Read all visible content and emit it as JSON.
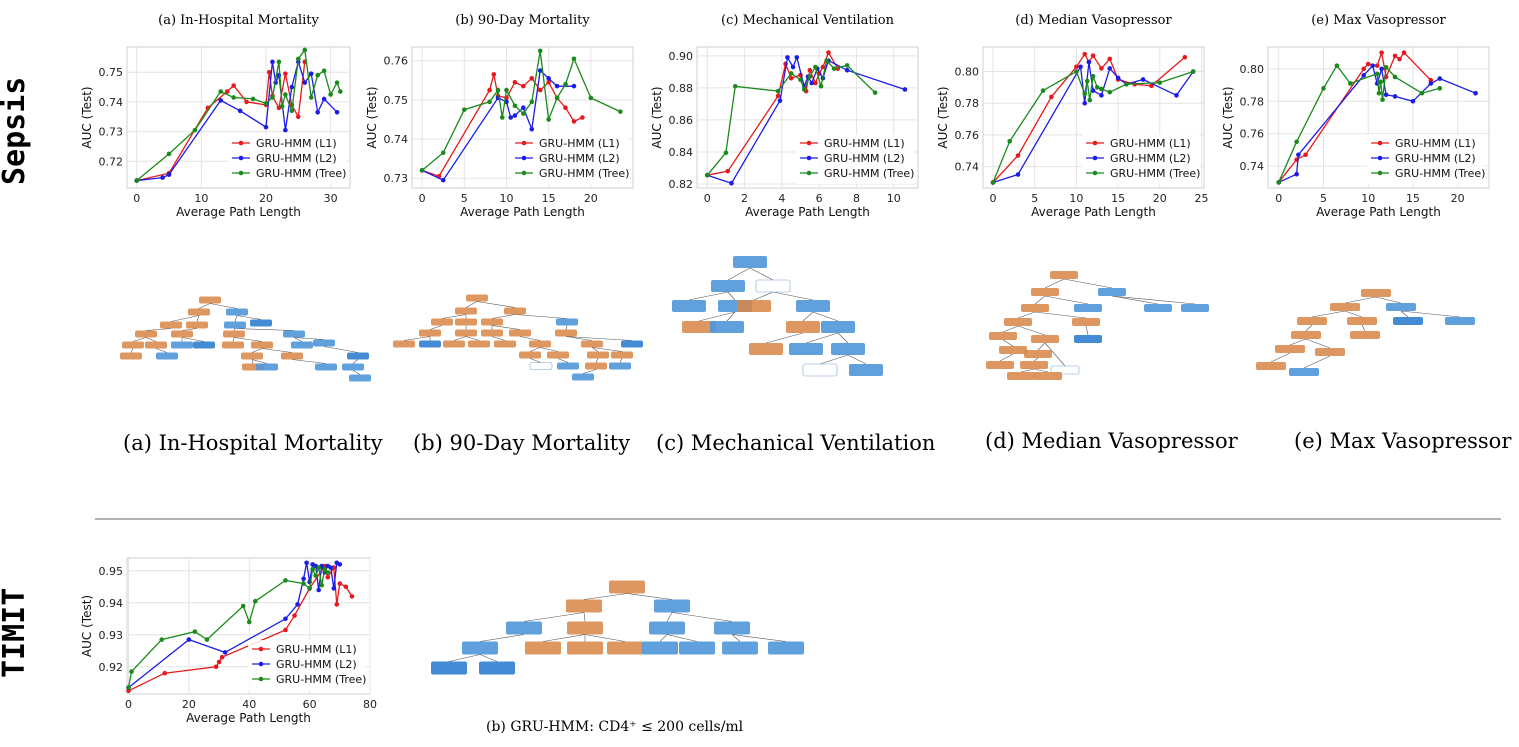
{
  "sections": {
    "sepsis_label": "Sepsis",
    "timit_label": "TIMIT",
    "tree_captions": [
      "(a) In-Hospital Mortality",
      "(b) 90-Day Mortality",
      "(c) Mechanical Ventilation",
      "(d) Median Vasopressor",
      "(e) Max Vasopressor"
    ],
    "timit_tree_caption": "(b) GRU-HMM: CD4⁺ ≤ 200 cells/ml"
  },
  "colors": {
    "L1": "#e8191c",
    "L2": "#1c1ce8",
    "Tree": "#1a8a1a",
    "tree_orange": "#d98545",
    "tree_blue": "#4f97d9"
  },
  "chart_data": [
    {
      "type": "line",
      "title": "(a) In-Hospital Mortality",
      "xlabel": "Average Path Length",
      "ylabel": "AUC (Test)",
      "xlim": [
        -1.5,
        33
      ],
      "ylim": [
        0.711,
        0.7585
      ],
      "xticks": [
        0,
        10,
        20,
        30
      ],
      "yticks": [
        0.72,
        0.73,
        0.74,
        0.75
      ],
      "grid": true,
      "legend": "lower-right",
      "series": [
        {
          "name": "GRU-HMM (L1)",
          "key": "L1",
          "x": [
            0,
            5,
            11,
            14,
            15,
            17,
            20,
            20.5,
            21,
            22,
            23,
            24,
            25,
            26
          ],
          "y": [
            0.7135,
            0.716,
            0.738,
            0.7435,
            0.7455,
            0.74,
            0.739,
            0.75,
            0.742,
            0.738,
            0.7495,
            0.739,
            0.735,
            0.7535
          ]
        },
        {
          "name": "GRU-HMM (L2)",
          "key": "L2",
          "x": [
            0,
            4,
            5,
            13,
            16,
            20,
            21,
            21.5,
            22,
            23,
            24,
            25,
            26,
            27,
            28,
            29,
            31
          ],
          "y": [
            0.7135,
            0.7145,
            0.7155,
            0.7405,
            0.737,
            0.7315,
            0.7535,
            0.7465,
            0.749,
            0.7305,
            0.745,
            0.7535,
            0.7465,
            0.7495,
            0.7365,
            0.741,
            0.7365
          ]
        },
        {
          "name": "GRU-HMM (Tree)",
          "key": "Tree",
          "x": [
            0,
            5,
            9,
            13,
            15,
            18,
            20,
            21,
            22,
            22.5,
            23,
            24,
            25,
            26,
            27,
            28,
            29,
            30,
            31,
            31.5
          ],
          "y": [
            0.7135,
            0.7225,
            0.7305,
            0.7435,
            0.7415,
            0.741,
            0.7395,
            0.7415,
            0.7535,
            0.7385,
            0.7425,
            0.737,
            0.7545,
            0.7575,
            0.7415,
            0.749,
            0.7505,
            0.7425,
            0.7465,
            0.7435
          ]
        }
      ]
    },
    {
      "type": "line",
      "title": "(b) 90-Day Mortality",
      "xlabel": "Average Path Length",
      "ylabel": "AUC (Test)",
      "xlim": [
        -1.2,
        25
      ],
      "ylim": [
        0.7275,
        0.7635
      ],
      "xticks": [
        0,
        5,
        10,
        15,
        20
      ],
      "yticks": [
        0.73,
        0.74,
        0.75,
        0.76
      ],
      "grid": true,
      "legend": "lower-right",
      "series": [
        {
          "name": "GRU-HMM (L1)",
          "key": "L1",
          "x": [
            0,
            2,
            8,
            8.5,
            9,
            10,
            11,
            12,
            13,
            14,
            15,
            16,
            17,
            18,
            19
          ],
          "y": [
            0.732,
            0.7305,
            0.7525,
            0.7565,
            0.751,
            0.7505,
            0.7545,
            0.7535,
            0.7555,
            0.7525,
            0.7545,
            0.7505,
            0.748,
            0.7445,
            0.7455
          ]
        },
        {
          "name": "GRU-HMM (L2)",
          "key": "L2",
          "x": [
            0,
            2.5,
            9,
            10,
            10.5,
            11,
            12,
            13,
            14,
            15,
            16,
            18
          ],
          "y": [
            0.732,
            0.7295,
            0.7505,
            0.7495,
            0.7455,
            0.746,
            0.748,
            0.7425,
            0.7575,
            0.7555,
            0.7535,
            0.7535
          ]
        },
        {
          "name": "GRU-HMM (Tree)",
          "key": "Tree",
          "x": [
            0,
            2.5,
            5,
            8,
            9,
            9.5,
            10,
            11,
            12,
            13,
            14,
            15,
            16,
            17,
            18,
            20,
            23.5
          ],
          "y": [
            0.732,
            0.7365,
            0.7475,
            0.7495,
            0.7525,
            0.7455,
            0.7525,
            0.7485,
            0.7465,
            0.7495,
            0.7625,
            0.745,
            0.7505,
            0.754,
            0.7605,
            0.7505,
            0.747
          ]
        }
      ]
    },
    {
      "type": "line",
      "title": "(c) Mechanical Ventilation",
      "xlabel": "Average Path Length",
      "ylabel": "AUC (Test)",
      "xlim": [
        -0.55,
        11.3
      ],
      "ylim": [
        0.8175,
        0.9055
      ],
      "xticks": [
        0,
        2,
        4,
        6,
        8,
        10
      ],
      "yticks": [
        0.82,
        0.84,
        0.86,
        0.88,
        0.9
      ],
      "grid": true,
      "legend": "lower-right",
      "series": [
        {
          "name": "GRU-HMM (L1)",
          "key": "L1",
          "x": [
            0,
            1.1,
            3.8,
            4.2,
            4.5,
            5.0,
            5.3,
            5.5,
            5.8,
            6.0,
            6.2,
            6.5,
            7.0
          ],
          "y": [
            0.8255,
            0.828,
            0.875,
            0.895,
            0.886,
            0.888,
            0.878,
            0.891,
            0.883,
            0.889,
            0.893,
            0.902,
            0.892
          ]
        },
        {
          "name": "GRU-HMM (L2)",
          "key": "L2",
          "x": [
            0,
            1.3,
            3.9,
            4.3,
            4.6,
            4.8,
            5.2,
            5.4,
            5.6,
            5.9,
            6.2,
            6.5,
            7.5,
            10.6
          ],
          "y": [
            0.8255,
            0.8205,
            0.872,
            0.899,
            0.893,
            0.899,
            0.881,
            0.887,
            0.883,
            0.892,
            0.886,
            0.897,
            0.891,
            0.879
          ]
        },
        {
          "name": "GRU-HMM (Tree)",
          "key": "Tree",
          "x": [
            0,
            1.0,
            1.5,
            3.8,
            4.5,
            5.0,
            5.2,
            5.5,
            5.8,
            6.1,
            6.4,
            6.8,
            7.5,
            9.0
          ],
          "y": [
            0.8255,
            0.8395,
            0.881,
            0.878,
            0.889,
            0.885,
            0.879,
            0.887,
            0.893,
            0.881,
            0.897,
            0.892,
            0.894,
            0.877
          ]
        }
      ]
    },
    {
      "type": "line",
      "title": "(d) Median Vasopressor",
      "xlabel": "Average Path Length",
      "ylabel": "AUC (Test)",
      "xlim": [
        -1.2,
        25.3
      ],
      "ylim": [
        0.7265,
        0.8155
      ],
      "xticks": [
        0,
        5,
        10,
        15,
        20,
        25
      ],
      "yticks": [
        0.74,
        0.76,
        0.78,
        0.8
      ],
      "grid": true,
      "legend": "lower-right",
      "series": [
        {
          "name": "GRU-HMM (L1)",
          "key": "L1",
          "x": [
            0,
            3,
            7,
            10,
            11,
            11.5,
            12,
            13,
            14,
            15,
            17,
            19,
            23
          ],
          "y": [
            0.73,
            0.747,
            0.784,
            0.803,
            0.811,
            0.806,
            0.81,
            0.802,
            0.808,
            0.795,
            0.792,
            0.791,
            0.809
          ]
        },
        {
          "name": "GRU-HMM (L2)",
          "key": "L2",
          "x": [
            0,
            3,
            10.5,
            11,
            11.5,
            12,
            13,
            14,
            15,
            16,
            18,
            22,
            24
          ],
          "y": [
            0.73,
            0.735,
            0.803,
            0.78,
            0.806,
            0.788,
            0.785,
            0.802,
            0.796,
            0.792,
            0.795,
            0.785,
            0.8
          ]
        },
        {
          "name": "GRU-HMM (Tree)",
          "key": "Tree",
          "x": [
            0,
            2,
            6,
            10,
            11,
            11.3,
            11.6,
            12,
            12.5,
            13,
            14,
            16,
            20,
            24
          ],
          "y": [
            0.73,
            0.756,
            0.788,
            0.8,
            0.786,
            0.794,
            0.782,
            0.797,
            0.79,
            0.789,
            0.787,
            0.792,
            0.793,
            0.8
          ]
        }
      ]
    },
    {
      "type": "line",
      "title": "(e) Max Vasopressor",
      "xlabel": "Average Path Length",
      "ylabel": "AUC (Test)",
      "xlim": [
        -1.2,
        23.5
      ],
      "ylim": [
        0.7265,
        0.8135
      ],
      "xticks": [
        0,
        5,
        10,
        15,
        20
      ],
      "yticks": [
        0.74,
        0.76,
        0.78,
        0.8
      ],
      "grid": true,
      "legend": "lower-right",
      "series": [
        {
          "name": "GRU-HMM (L1)",
          "key": "L1",
          "x": [
            0,
            2,
            3,
            9.5,
            10,
            11,
            11.5,
            12,
            13,
            13.5,
            14,
            17
          ],
          "y": [
            0.73,
            0.744,
            0.747,
            0.8,
            0.803,
            0.802,
            0.81,
            0.795,
            0.808,
            0.806,
            0.81,
            0.793
          ]
        },
        {
          "name": "GRU-HMM (L2)",
          "key": "L2",
          "x": [
            0,
            2,
            2.2,
            9.5,
            10.5,
            11,
            11.5,
            12,
            13,
            15,
            17,
            18,
            22
          ],
          "y": [
            0.73,
            0.735,
            0.747,
            0.796,
            0.802,
            0.791,
            0.8,
            0.784,
            0.783,
            0.78,
            0.791,
            0.794,
            0.785
          ]
        },
        {
          "name": "GRU-HMM (Tree)",
          "key": "Tree",
          "x": [
            0,
            2,
            5,
            6.5,
            8,
            11,
            11.2,
            11.4,
            11.6,
            12,
            13,
            16,
            18
          ],
          "y": [
            0.73,
            0.755,
            0.788,
            0.802,
            0.791,
            0.797,
            0.785,
            0.792,
            0.781,
            0.801,
            0.795,
            0.785,
            0.788
          ]
        }
      ]
    },
    {
      "type": "line",
      "title": "",
      "xlabel": "Average Path Length",
      "ylabel": "AUC (Test)",
      "xlim": [
        -0.5,
        80
      ],
      "ylim": [
        0.9115,
        0.954
      ],
      "xticks": [
        0,
        20,
        40,
        60,
        80
      ],
      "yticks": [
        0.92,
        0.93,
        0.94,
        0.95
      ],
      "grid": true,
      "legend": "lower-right",
      "series": [
        {
          "name": "GRU-HMM (L1)",
          "key": "L1",
          "x": [
            0,
            12,
            29,
            30,
            31,
            52,
            55,
            60,
            65,
            66,
            68,
            69,
            70,
            72,
            74
          ],
          "y": [
            0.9125,
            0.918,
            0.92,
            0.9215,
            0.923,
            0.9315,
            0.936,
            0.9445,
            0.9515,
            0.948,
            0.951,
            0.9395,
            0.946,
            0.945,
            0.942
          ]
        },
        {
          "name": "GRU-HMM (L2)",
          "key": "L2",
          "x": [
            0,
            20,
            32,
            52,
            56,
            58,
            59,
            60,
            61,
            62,
            63,
            64,
            65,
            66,
            67,
            68,
            69,
            70
          ],
          "y": [
            0.9135,
            0.9285,
            0.9245,
            0.935,
            0.9395,
            0.9475,
            0.9525,
            0.9465,
            0.952,
            0.9515,
            0.944,
            0.9515,
            0.9495,
            0.9515,
            0.951,
            0.9445,
            0.9525,
            0.952
          ]
        },
        {
          "name": "GRU-HMM (Tree)",
          "key": "Tree",
          "x": [
            0,
            1,
            11,
            22,
            26,
            38,
            40,
            42,
            52,
            58,
            60,
            61,
            62,
            63,
            64,
            65,
            66
          ],
          "y": [
            0.9135,
            0.9185,
            0.9285,
            0.931,
            0.9285,
            0.939,
            0.934,
            0.9405,
            0.947,
            0.946,
            0.9445,
            0.9505,
            0.9485,
            0.951,
            0.9455,
            0.9505,
            0.9495
          ]
        }
      ]
    }
  ]
}
